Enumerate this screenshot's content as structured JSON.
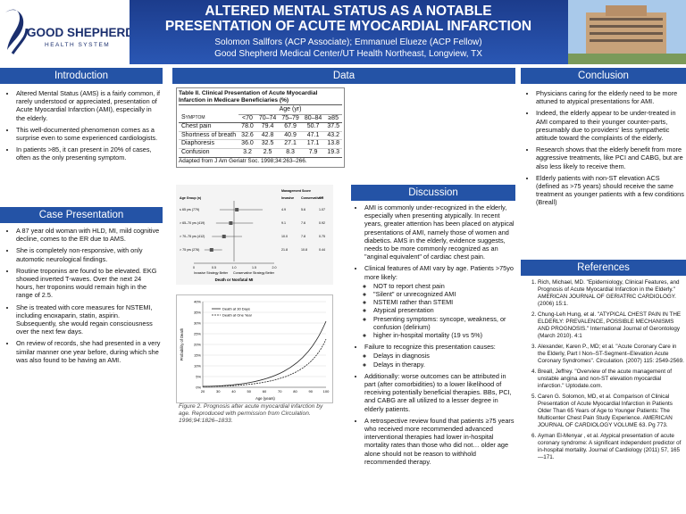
{
  "header": {
    "title_lines": [
      "ALTERED MENTAL STATUS AS A NOTABLE",
      "PRESENTATION OF ACUTE MYOCARDIAL INFARCTION"
    ],
    "authors": "Solomon Sallfors (ACP Associate); Emmanuel Elueze (ACP Fellow)",
    "affiliation": "Good Shepherd Medical Center/UT Health Northeast, Longview, TX",
    "logo": {
      "name": "GOOD SHEPHERD",
      "tagline": "HEALTH SYSTEM"
    }
  },
  "introduction": {
    "heading": "Introduction",
    "bullets": [
      "Altered Mental Status (AMS) is a fairly common, if rarely understood or appreciated, presentation of Acute Myocardial Infarction (AMI), especially in the elderly.",
      "This well-documented phenomenon comes as a surprise even to some experienced cardiologists.",
      "In patients >85, it can present in 20% of cases, often as the only presenting symptom."
    ]
  },
  "case": {
    "heading": "Case Presentation",
    "bullets": [
      "A  87 year old woman with HLD, MI, mild cognitive decline, comes to the ER due to AMS.",
      "She is completely non-responsive, with only automotic neurological findings.",
      "Routine troponins are found to be elevated. EKG showed inverted T-waves. Over the next 24 hours, her troponins would remain high in the range of 2.5.",
      "She is treated with core measures for NSTEMI, including enoxaparin, statin, aspirin. Subsequently, she would regain consciousness over the next few days.",
      "On review of records, she had presented in a very similar manner one year before, during which she was also found to be having an AMI."
    ]
  },
  "data": {
    "heading": "Data",
    "table": {
      "title": "Table II. Clinical Presentation of Acute Myocardial Infarction in Medicare Beneficiaries (%)",
      "group_header": "Age (yr)",
      "columns": [
        "Symptom",
        "<70",
        "70–74",
        "75–79",
        "80–84",
        "≥85"
      ],
      "rows": [
        [
          "Chest pain",
          "78.0",
          "79.4",
          "67.9",
          "50.7",
          "37.5"
        ],
        [
          "Shortness of breath",
          "32.6",
          "42.8",
          "40.9",
          "47.1",
          "43.2"
        ],
        [
          "Diaphoresis",
          "36.0",
          "32.5",
          "27.1",
          "17.1",
          "13.8"
        ],
        [
          "Confusion",
          "3.2",
          "2.5",
          "8.3",
          "7.9",
          "19.3"
        ]
      ],
      "source": "Adapted from J Am Geriatr Soc. 1998;34:263–266."
    },
    "forest_plot": {
      "col_headers": [
        "Age Group (n)",
        "Management Score",
        "Invasive",
        "Conservative",
        "OR"
      ],
      "rows": [
        [
          "≤ 65 yrs (779)",
          "4.9",
          "5.6",
          "1.07"
        ],
        [
          "> 65–70 yrs (419)",
          "9.1",
          "7.6",
          "0.92"
        ],
        [
          "> 70–75 yrs (412)",
          "10.0",
          "7.8",
          "0.75"
        ],
        [
          "> 75 yrs (276)",
          "21.8",
          "10.8",
          "0.44"
        ]
      ],
      "x_ticks": [
        "0",
        "0.5",
        "1.0",
        "1.5",
        "2.0"
      ],
      "left_note": "Invasive Strategy Better",
      "right_note": "Conservative Strategy Better",
      "x_label": "Death or Nonfatal MI"
    },
    "mortality_chart": {
      "legend": [
        "Death at 30 Days",
        "Death at One Year"
      ],
      "y_label": "Probability of Death",
      "x_label": "Age (years)",
      "y_ticks": [
        "0%",
        "5%",
        "10%",
        "15%",
        "20%",
        "25%",
        "30%",
        "35%",
        "40%"
      ],
      "x_ticks": [
        "20",
        "30",
        "40",
        "50",
        "60",
        "70",
        "80",
        "90",
        "100"
      ]
    },
    "caption": "Figure 2. Prognosis after acute myocardial infarction by age. Reproduced with permission from Circulation. 1996;94:1826–1833."
  },
  "discussion": {
    "heading": "Discussion",
    "bullets": [
      "AMI is commonly under-recognized in the elderly, especially when presenting atypically. In recent years, greater attention has been placed on atypical presentations of AMI, namely those of women and diabetics.  AMS in the elderly, evidence suggests, needs to be more commonly recognized as an \"anginal equivalent\" of cardiac chest pain.",
      {
        "text": "Clinical features of AMI vary by age. Patients >75yo more likely:",
        "sub": [
          "NOT to report  chest pain",
          "\"Silent\" or unrecognized AMI",
          "NSTEMI rather than STEMI",
          "Atypical presentation",
          "Presenting symptoms: syncope, weakness, or confusion (delirium)",
          "higher in-hospital mortality (19 vs 5%)"
        ]
      },
      {
        "text": "Failure to recognize this presentation causes:",
        "sub": [
          "Delays in diagnosis",
          "Delays in therapy."
        ]
      },
      "Additionally: worse outcomes can be attributed in part (after comorbidities) to a lower likelihood of receiving potentially beneficial therapies. BBs, PCI, and CABG are all utilized to a lesser degree in elderly patients.",
      "A retrospective review found that patients ≥75 years who received more recommended advanced interventional therapies had  lower in-hospital mortality rates than those who did not… older age alone should not be reason to withhold recommended therapy."
    ]
  },
  "conclusion": {
    "heading": "Conclusion",
    "bullets": [
      "Physicians caring for the elderly need to be more attuned to atypical presentations for AMI.",
      "Indeed, the elderly appear to be under-treated in AMI compared to their younger counter-parts, presumably due to providers' less sympathetic attitude toward the complaints of the elderly.",
      "Research shows that the elderly benefit from more aggressive treatments, like PCI and CABG, but are also less likely to receive them.",
      "Elderly patients with non-ST elevation ACS (defined as >75 years) should receive the same treatment as younger patients with a few conditions (Breall)"
    ]
  },
  "references": {
    "heading": "References",
    "items": [
      "Rich, Michael, MD. \"Epidemiology, Clinical Features, and Prognosis of Acute Myocardial Infarction in the Elderly.\" AMERICAN JOURNAL OF GERIATRIC CARDIOLOGY. (2006) 15:1.",
      "Chung-Leh Hung, et al. \"ATYPICAL CHEST PAIN IN THE ELDERLY: PREVALENCE, POSSIBLE MECHANISMS AND PROGNOSIS.\" International Journal of Gerontology (March 2010). 4:1",
      "Alexander, Karen P., MD; et al. \"Acute Coronary Care in the Elderly, Part I Non–ST-Segment–Elevation Acute Coronary Syndromes\". Circulation. (2007)  115: 2549-2569.",
      "Breall, Jeffrey. \"Overview of the acute management of unstable angina and non-ST elevation myocardial infarction.\" Uptodate.com.",
      "Caren G. Solomon, MD, et al. Comparison of Clinical Presentation of Acute Myocardial Infarction in Patients Older Than 65 Years of Age to Younger Patients: The Multicenter Chest Pain Study Experience. AMERICAN JOURNAL OF CARDIOLOGY VOLUME 63. Pg 773.",
      "Ayman El-Menyar , et al. Atypical presentation of acute coronary syndrome: A significant independent predictor of in-hospital mortality. Journal of Cardiology (2011) 57, 165—171."
    ]
  }
}
